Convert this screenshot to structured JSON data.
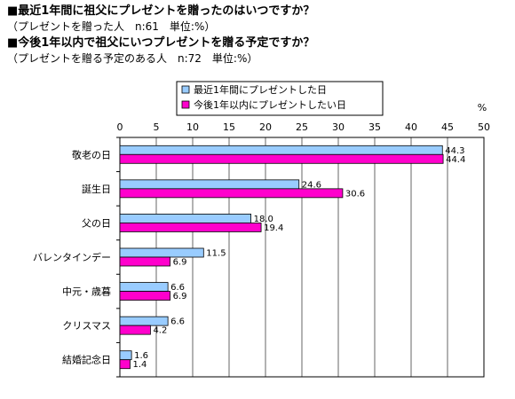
{
  "header": {
    "line1": "■最近1年間に祖父にプレゼントを贈ったのはいつですか？",
    "line2": "（プレゼントを贈った人　n:61　単位:%）",
    "line3": "■今後1年以内で祖父にいつプレゼントを贈る予定ですか？",
    "line4": "（プレゼントを贈る予定のある人　n:72　単位:%）"
  },
  "chart_data": {
    "type": "bar",
    "orientation": "horizontal",
    "unit_label": "%",
    "xlim": [
      0,
      50
    ],
    "ticks": [
      0,
      5,
      10,
      15,
      20,
      25,
      30,
      35,
      40,
      45,
      50
    ],
    "grid": true,
    "legend_position": "top",
    "categories": [
      "敬老の日",
      "誕生日",
      "父の日",
      "バレンタインデー",
      "中元・歳暮",
      "クリスマス",
      "結婚記念日"
    ],
    "series": [
      {
        "name": "最近1年間にプレゼントした日",
        "color": "#99CCFF",
        "values": [
          44.3,
          24.6,
          18.0,
          11.5,
          6.6,
          6.6,
          1.6
        ],
        "labels": [
          "44.3",
          "24.6",
          "18.0",
          "11.5",
          "6.6",
          "6.6",
          "1.6"
        ]
      },
      {
        "name": "今後1年以内にプレゼントしたい日",
        "color": "#FF00CC",
        "values": [
          44.4,
          30.6,
          19.4,
          6.9,
          6.9,
          4.2,
          1.4
        ],
        "labels": [
          "44.4",
          "30.6",
          "19.4",
          "6.9",
          "6.9",
          "4.2",
          "1.4"
        ]
      }
    ]
  }
}
